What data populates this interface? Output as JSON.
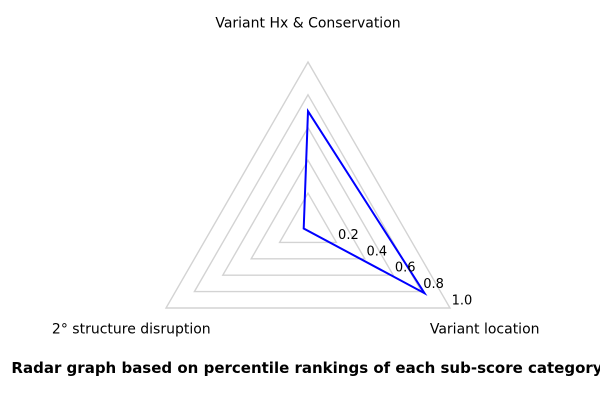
{
  "chart_data": {
    "type": "radar",
    "title": "Radar graph based on percentile rankings of each sub-score category",
    "categories": [
      "Variant Hx & Conservation",
      "Variant location",
      "2° structure disruption"
    ],
    "values": [
      0.7,
      0.82,
      0.03
    ],
    "axis_angles_deg": [
      90,
      330,
      210
    ],
    "ticks": [
      0.2,
      0.4,
      0.6,
      0.8,
      1.0
    ],
    "tick_labels": [
      "0.2",
      "0.4",
      "0.6",
      "0.8",
      "1.0"
    ],
    "rlim": [
      0,
      1.0
    ],
    "grid": true,
    "legend_position": "none",
    "colors": {
      "line": "#0000ff",
      "grid": "#d3d3d3",
      "text": "#000000",
      "background": "#ffffff"
    }
  }
}
